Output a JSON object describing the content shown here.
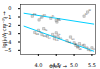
{
  "chart_data": {
    "type": "scatter",
    "xlabel": "Φ/eV",
    "ylabel": "lg(j₀/A·cm⁻²)",
    "xlim": [
      3.5,
      5.6
    ],
    "ylim": [
      -5.5,
      0.5
    ],
    "xticks": [
      {
        "value": 4.0,
        "label": "4.0"
      },
      {
        "value": 4.5,
        "label": "4.5"
      },
      {
        "value": 5.0,
        "label": "5.0"
      },
      {
        "value": 5.5,
        "label": "5.5"
      }
    ],
    "yticks": [
      0,
      -1,
      -2,
      -3,
      -4,
      -5
    ],
    "series": [
      {
        "type": "line",
        "color": "#00cfff",
        "x": [
          3.6,
          5.55
        ],
        "values": [
          -0.55,
          -1.85
        ]
      },
      {
        "type": "line",
        "color": "#00cfff",
        "x": [
          3.6,
          5.55
        ],
        "values": [
          -2.1,
          -5.1
        ]
      },
      {
        "type": "scatter",
        "marker": "square",
        "color": "#888888",
        "x": [
          3.83,
          4.02,
          4.1,
          4.35,
          4.5,
          4.52,
          5.28,
          5.38
        ],
        "values": [
          -0.9,
          -1.35,
          -1.0,
          -1.15,
          -1.4,
          -1.6,
          -0.9,
          -0.4
        ],
        "point_labels": [
          "Re",
          "Ir",
          "Rh",
          "Pt",
          "Pd",
          "Ru",
          "Ni",
          "W"
        ]
      },
      {
        "type": "scatter",
        "marker": "square",
        "color": "#888888",
        "x": [
          3.9,
          4.0,
          4.1,
          4.15,
          4.25,
          4.4,
          4.45,
          4.5,
          4.55,
          4.8,
          4.9,
          5.0,
          5.05,
          5.1,
          5.15,
          5.28,
          5.4,
          5.5
        ],
        "values": [
          -2.85,
          -2.6,
          -3.1,
          -2.4,
          -3.3,
          -3.1,
          -3.6,
          -2.9,
          -3.35,
          -3.85,
          -3.4,
          -4.1,
          -4.4,
          -4.6,
          -4.2,
          -4.4,
          -4.9,
          -4.7
        ],
        "point_labels": [
          "Nb",
          "Ti",
          "Mo",
          "Ta",
          "Cr",
          "Fe",
          "Co",
          "Cu",
          "Zn",
          "Ag",
          "Sn",
          "Bi",
          "Pb",
          "Sb",
          "Cd",
          "Hg",
          "Tl",
          "In"
        ]
      }
    ]
  }
}
